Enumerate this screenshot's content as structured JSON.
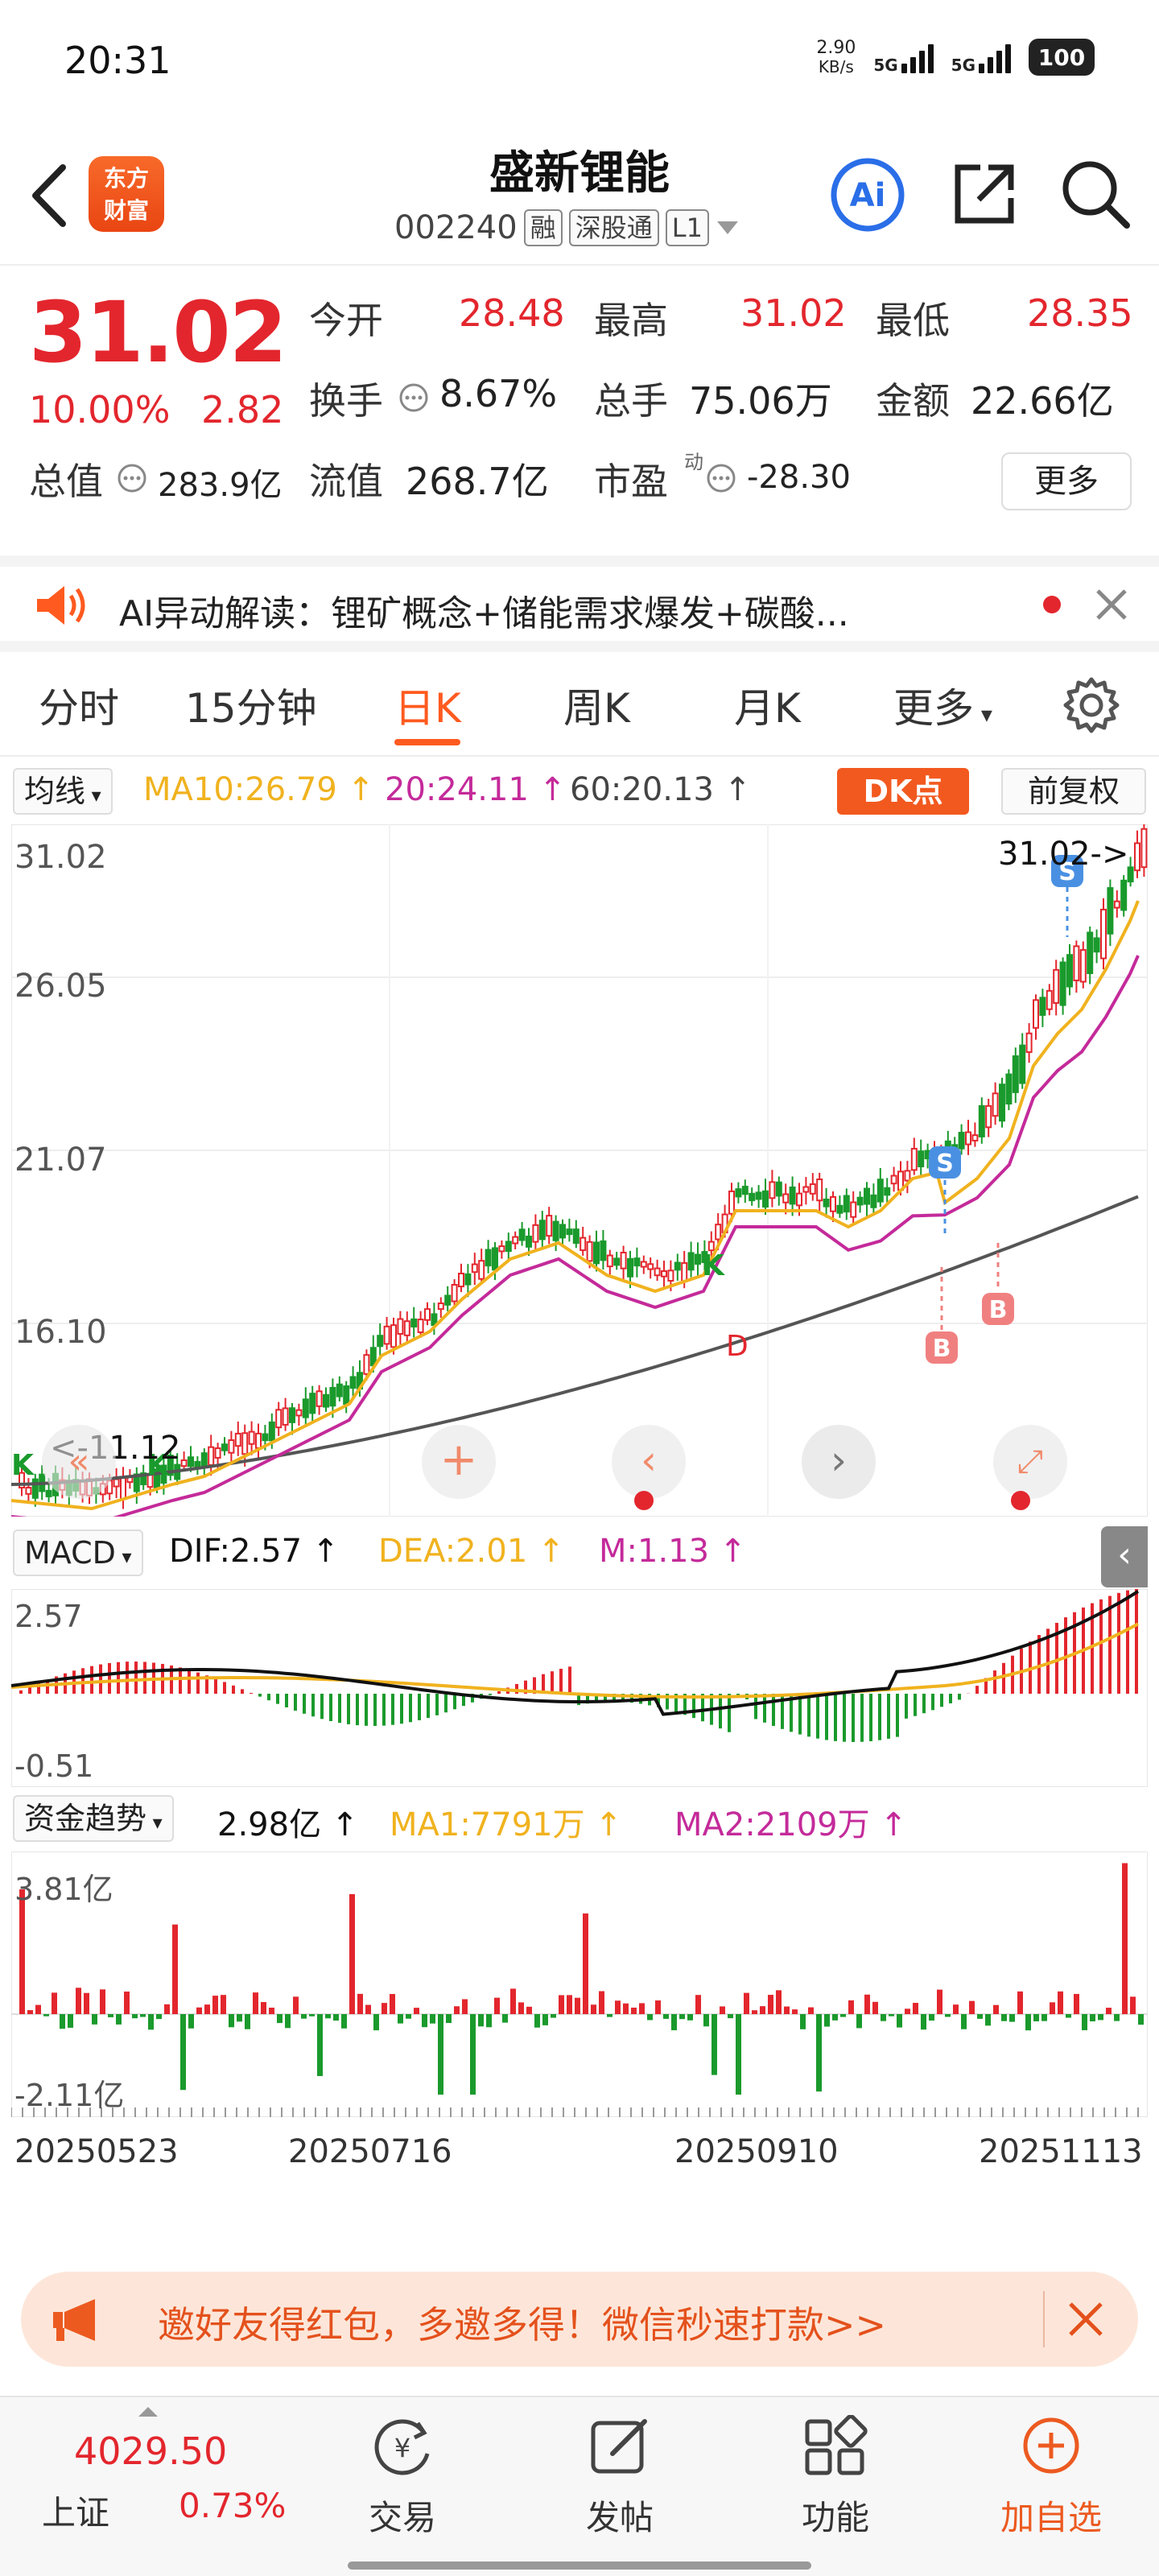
{
  "status_bar": {
    "time": "20:31",
    "net_speed": "2.90",
    "net_unit": "KB/s",
    "net1": "5G",
    "net2": "5G",
    "battery": "100"
  },
  "header": {
    "logo_text_line1": "东方",
    "logo_text_line2": "财富",
    "stock_name": "盛新锂能",
    "stock_code": "002240",
    "tag_margin": "融",
    "tag_connect": "深股通",
    "tag_level": "L1"
  },
  "quote": {
    "price": "31.02",
    "change_pct": "10.00%",
    "change_amt": "2.82",
    "open_label": "今开",
    "open": "28.48",
    "high_label": "最高",
    "high": "31.02",
    "low_label": "最低",
    "low": "28.35",
    "turnover_label": "换手",
    "turnover": "8.67%",
    "volume_label": "总手",
    "volume": "75.06万",
    "amount_label": "金额",
    "amount": "22.66亿",
    "mktcap_label": "总值",
    "mktcap": "283.9亿",
    "float_label": "流值",
    "float_cap": "268.7亿",
    "pe_label": "市盈",
    "pe_sup": "动",
    "pe": "-28.30",
    "more_label": "更多"
  },
  "ai_banner": {
    "text": "AI异动解读：锂矿概念+储能需求爆发+碳酸..."
  },
  "tabs": {
    "items": [
      "分时",
      "15分钟",
      "日K",
      "周K",
      "月K",
      "更多"
    ],
    "active": "日K"
  },
  "kline": {
    "ma_selector": "均线",
    "ma10": "MA10:26.79",
    "ma20": "20:24.11",
    "ma60": "60:20.13",
    "dk_label": "DK点",
    "fq_label": "前复权",
    "y_labels": [
      "31.02",
      "26.05",
      "21.07",
      "16.10"
    ],
    "last_price_label": "31.02->",
    "low_marker": "<-11.12"
  },
  "macd": {
    "selector": "MACD",
    "dif": "DIF:2.57",
    "dea": "DEA:2.01",
    "m": "M:1.13",
    "y_top": "2.57",
    "y_bottom": "-0.51"
  },
  "fund": {
    "selector": "资金趋势",
    "value": "2.98亿",
    "ma1": "MA1:7791万",
    "ma2": "MA2:2109万",
    "y_top": "3.81亿",
    "y_bottom": "-2.11亿"
  },
  "dates": [
    "20250523",
    "20250716",
    "20250910",
    "20251113"
  ],
  "promo": {
    "text": "邀好友得红包，多邀多得！微信秒速打款>>"
  },
  "bottom_nav": {
    "index_value": "4029.50",
    "index_name": "上证",
    "index_change": "0.73%",
    "items": [
      "交易",
      "发帖",
      "功能",
      "加自选"
    ]
  },
  "colors": {
    "up": "#e3262d",
    "down": "#1a9a2c",
    "ma10": "#f0b21e",
    "ma20": "#c42a9a",
    "ma60": "#444444",
    "accent": "#ff5a1f"
  }
}
